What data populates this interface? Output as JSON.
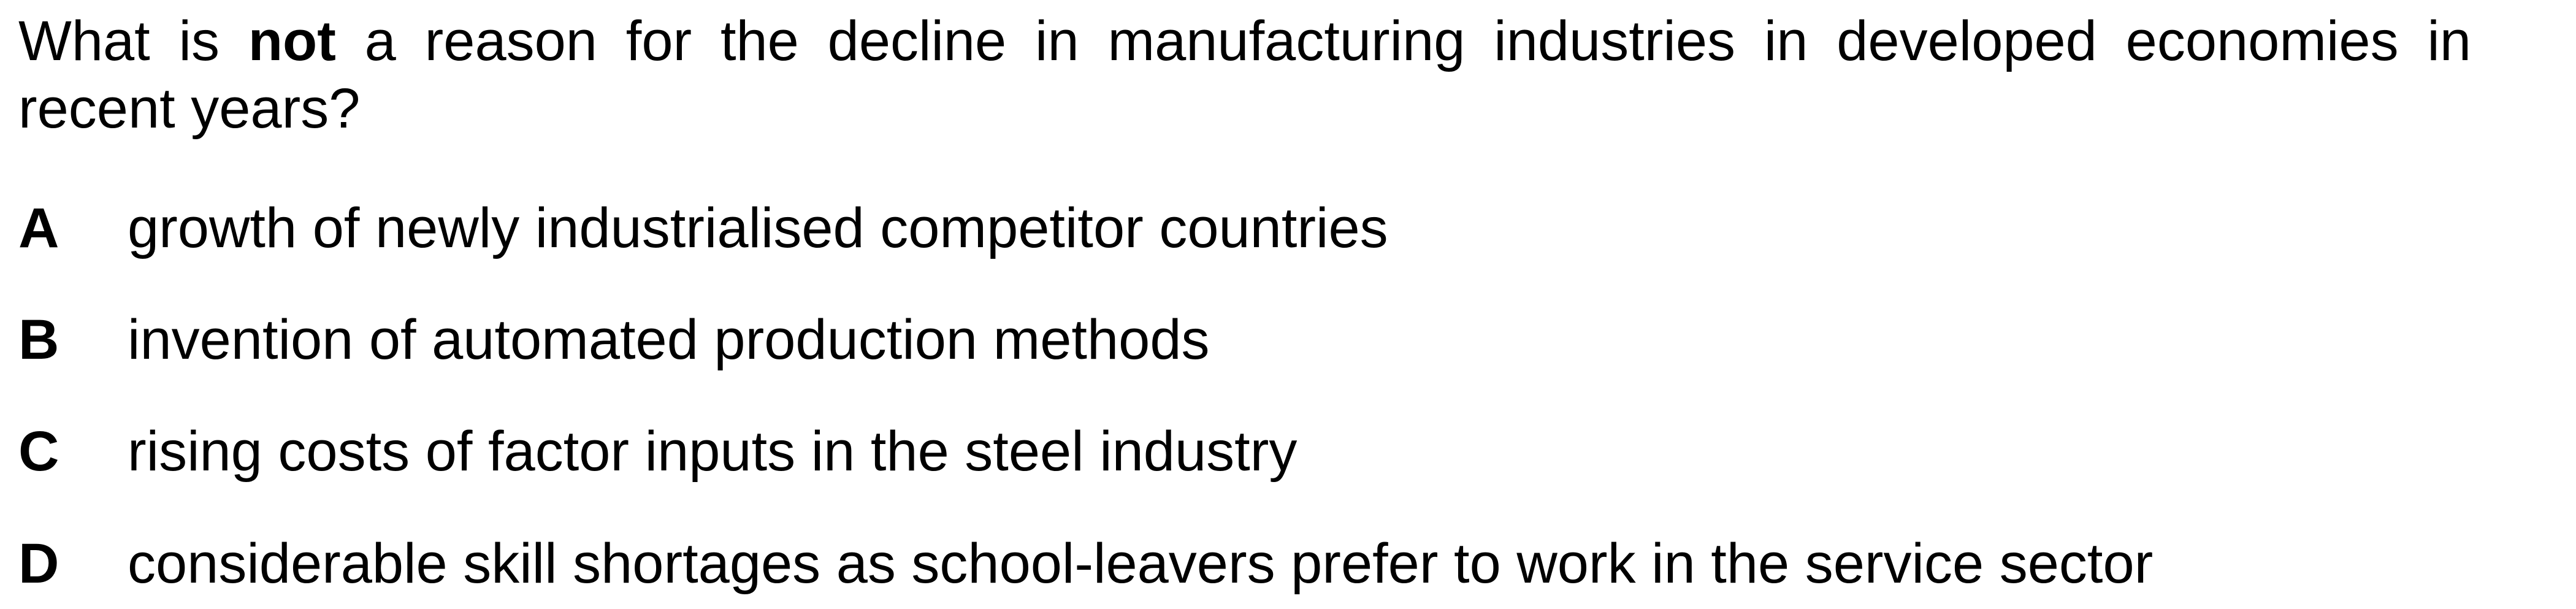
{
  "question": {
    "line1_words": [
      "What",
      "is",
      "not",
      "a",
      "reason",
      "for",
      "the",
      "decline",
      "in",
      "manufacturing",
      "industries",
      "in",
      "developed",
      "economies",
      "in"
    ],
    "bold_word_index": 2,
    "line2": "recent years?"
  },
  "options": [
    {
      "letter": "A",
      "text": "growth of newly industrialised competitor countries"
    },
    {
      "letter": "B",
      "text": "invention of automated production methods"
    },
    {
      "letter": "C",
      "text": "rising costs of factor inputs in the steel industry"
    },
    {
      "letter": "D",
      "text": "considerable skill shortages as school-leavers prefer to work in the service sector"
    }
  ]
}
